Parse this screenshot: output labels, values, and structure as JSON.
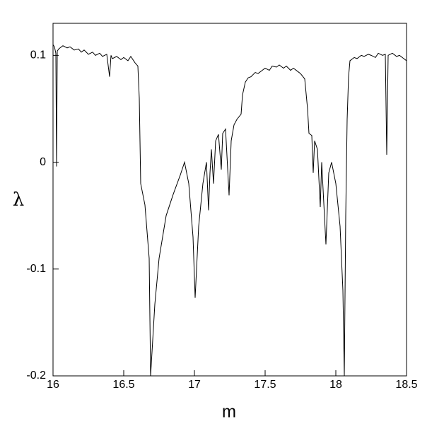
{
  "chart_data": {
    "type": "line",
    "x_label": "m",
    "y_label": "λ",
    "x": [
      16.0,
      16.01,
      16.02,
      16.025,
      16.03,
      16.04,
      16.05,
      16.07,
      16.1,
      16.12,
      16.15,
      16.18,
      16.2,
      16.22,
      16.25,
      16.28,
      16.3,
      16.33,
      16.35,
      16.38,
      16.4,
      16.41,
      16.42,
      16.45,
      16.48,
      16.5,
      16.53,
      16.55,
      16.58,
      16.6,
      16.61,
      16.62,
      16.65,
      16.68,
      16.69,
      16.72,
      16.75,
      16.8,
      16.85,
      16.9,
      16.93,
      16.96,
      16.99,
      17.005,
      17.03,
      17.06,
      17.085,
      17.1,
      17.11,
      17.12,
      17.135,
      17.15,
      17.17,
      17.19,
      17.2,
      17.22,
      17.245,
      17.26,
      17.28,
      17.3,
      17.33,
      17.34,
      17.36,
      17.38,
      17.4,
      17.43,
      17.45,
      17.48,
      17.5,
      17.53,
      17.55,
      17.58,
      17.6,
      17.63,
      17.65,
      17.68,
      17.7,
      17.73,
      17.75,
      17.78,
      17.8,
      17.81,
      17.83,
      17.84,
      17.85,
      17.87,
      17.89,
      17.9,
      17.93,
      17.95,
      17.97,
      18.0,
      18.03,
      18.05,
      18.06,
      18.07,
      18.08,
      18.09,
      18.1,
      18.13,
      18.15,
      18.18,
      18.2,
      18.23,
      18.25,
      18.28,
      18.3,
      18.33,
      18.35,
      18.36,
      18.37,
      18.4,
      18.43,
      18.45,
      18.48,
      18.5
    ],
    "series": [
      {
        "color": "#000000",
        "values": [
          0.11,
          0.108,
          0.102,
          -0.004,
          0.104,
          0.106,
          0.107,
          0.109,
          0.107,
          0.108,
          0.105,
          0.106,
          0.103,
          0.105,
          0.101,
          0.103,
          0.1,
          0.102,
          0.099,
          0.101,
          0.08,
          0.1,
          0.097,
          0.099,
          0.096,
          0.098,
          0.095,
          0.099,
          0.093,
          0.09,
          0.06,
          -0.02,
          -0.04,
          -0.09,
          -0.2,
          -0.133,
          -0.09,
          -0.05,
          -0.03,
          -0.012,
          0.0,
          -0.02,
          -0.07,
          -0.127,
          -0.06,
          -0.02,
          0.0,
          -0.045,
          -0.01,
          0.012,
          -0.02,
          0.02,
          0.026,
          -0.007,
          0.027,
          0.031,
          -0.031,
          0.02,
          0.035,
          0.04,
          0.045,
          0.063,
          0.075,
          0.079,
          0.08,
          0.084,
          0.083,
          0.086,
          0.088,
          0.086,
          0.09,
          0.089,
          0.091,
          0.088,
          0.09,
          0.086,
          0.088,
          0.085,
          0.083,
          0.078,
          0.05,
          0.027,
          0.025,
          -0.01,
          0.02,
          0.012,
          -0.042,
          0.0,
          -0.077,
          -0.01,
          0.0,
          -0.02,
          -0.06,
          -0.12,
          -0.2,
          -0.05,
          0.04,
          0.08,
          0.095,
          0.098,
          0.097,
          0.1,
          0.099,
          0.101,
          0.1,
          0.098,
          0.102,
          0.1,
          0.101,
          0.007,
          0.1,
          0.102,
          0.099,
          0.1,
          0.097,
          0.095
        ]
      }
    ],
    "xlim": [
      16,
      18.5
    ],
    "ylim": [
      -0.2,
      0.13
    ],
    "xticks": [
      16,
      16.5,
      17,
      17.5,
      18,
      18.5
    ],
    "yticks": [
      -0.2,
      -0.1,
      0,
      0.1
    ]
  }
}
